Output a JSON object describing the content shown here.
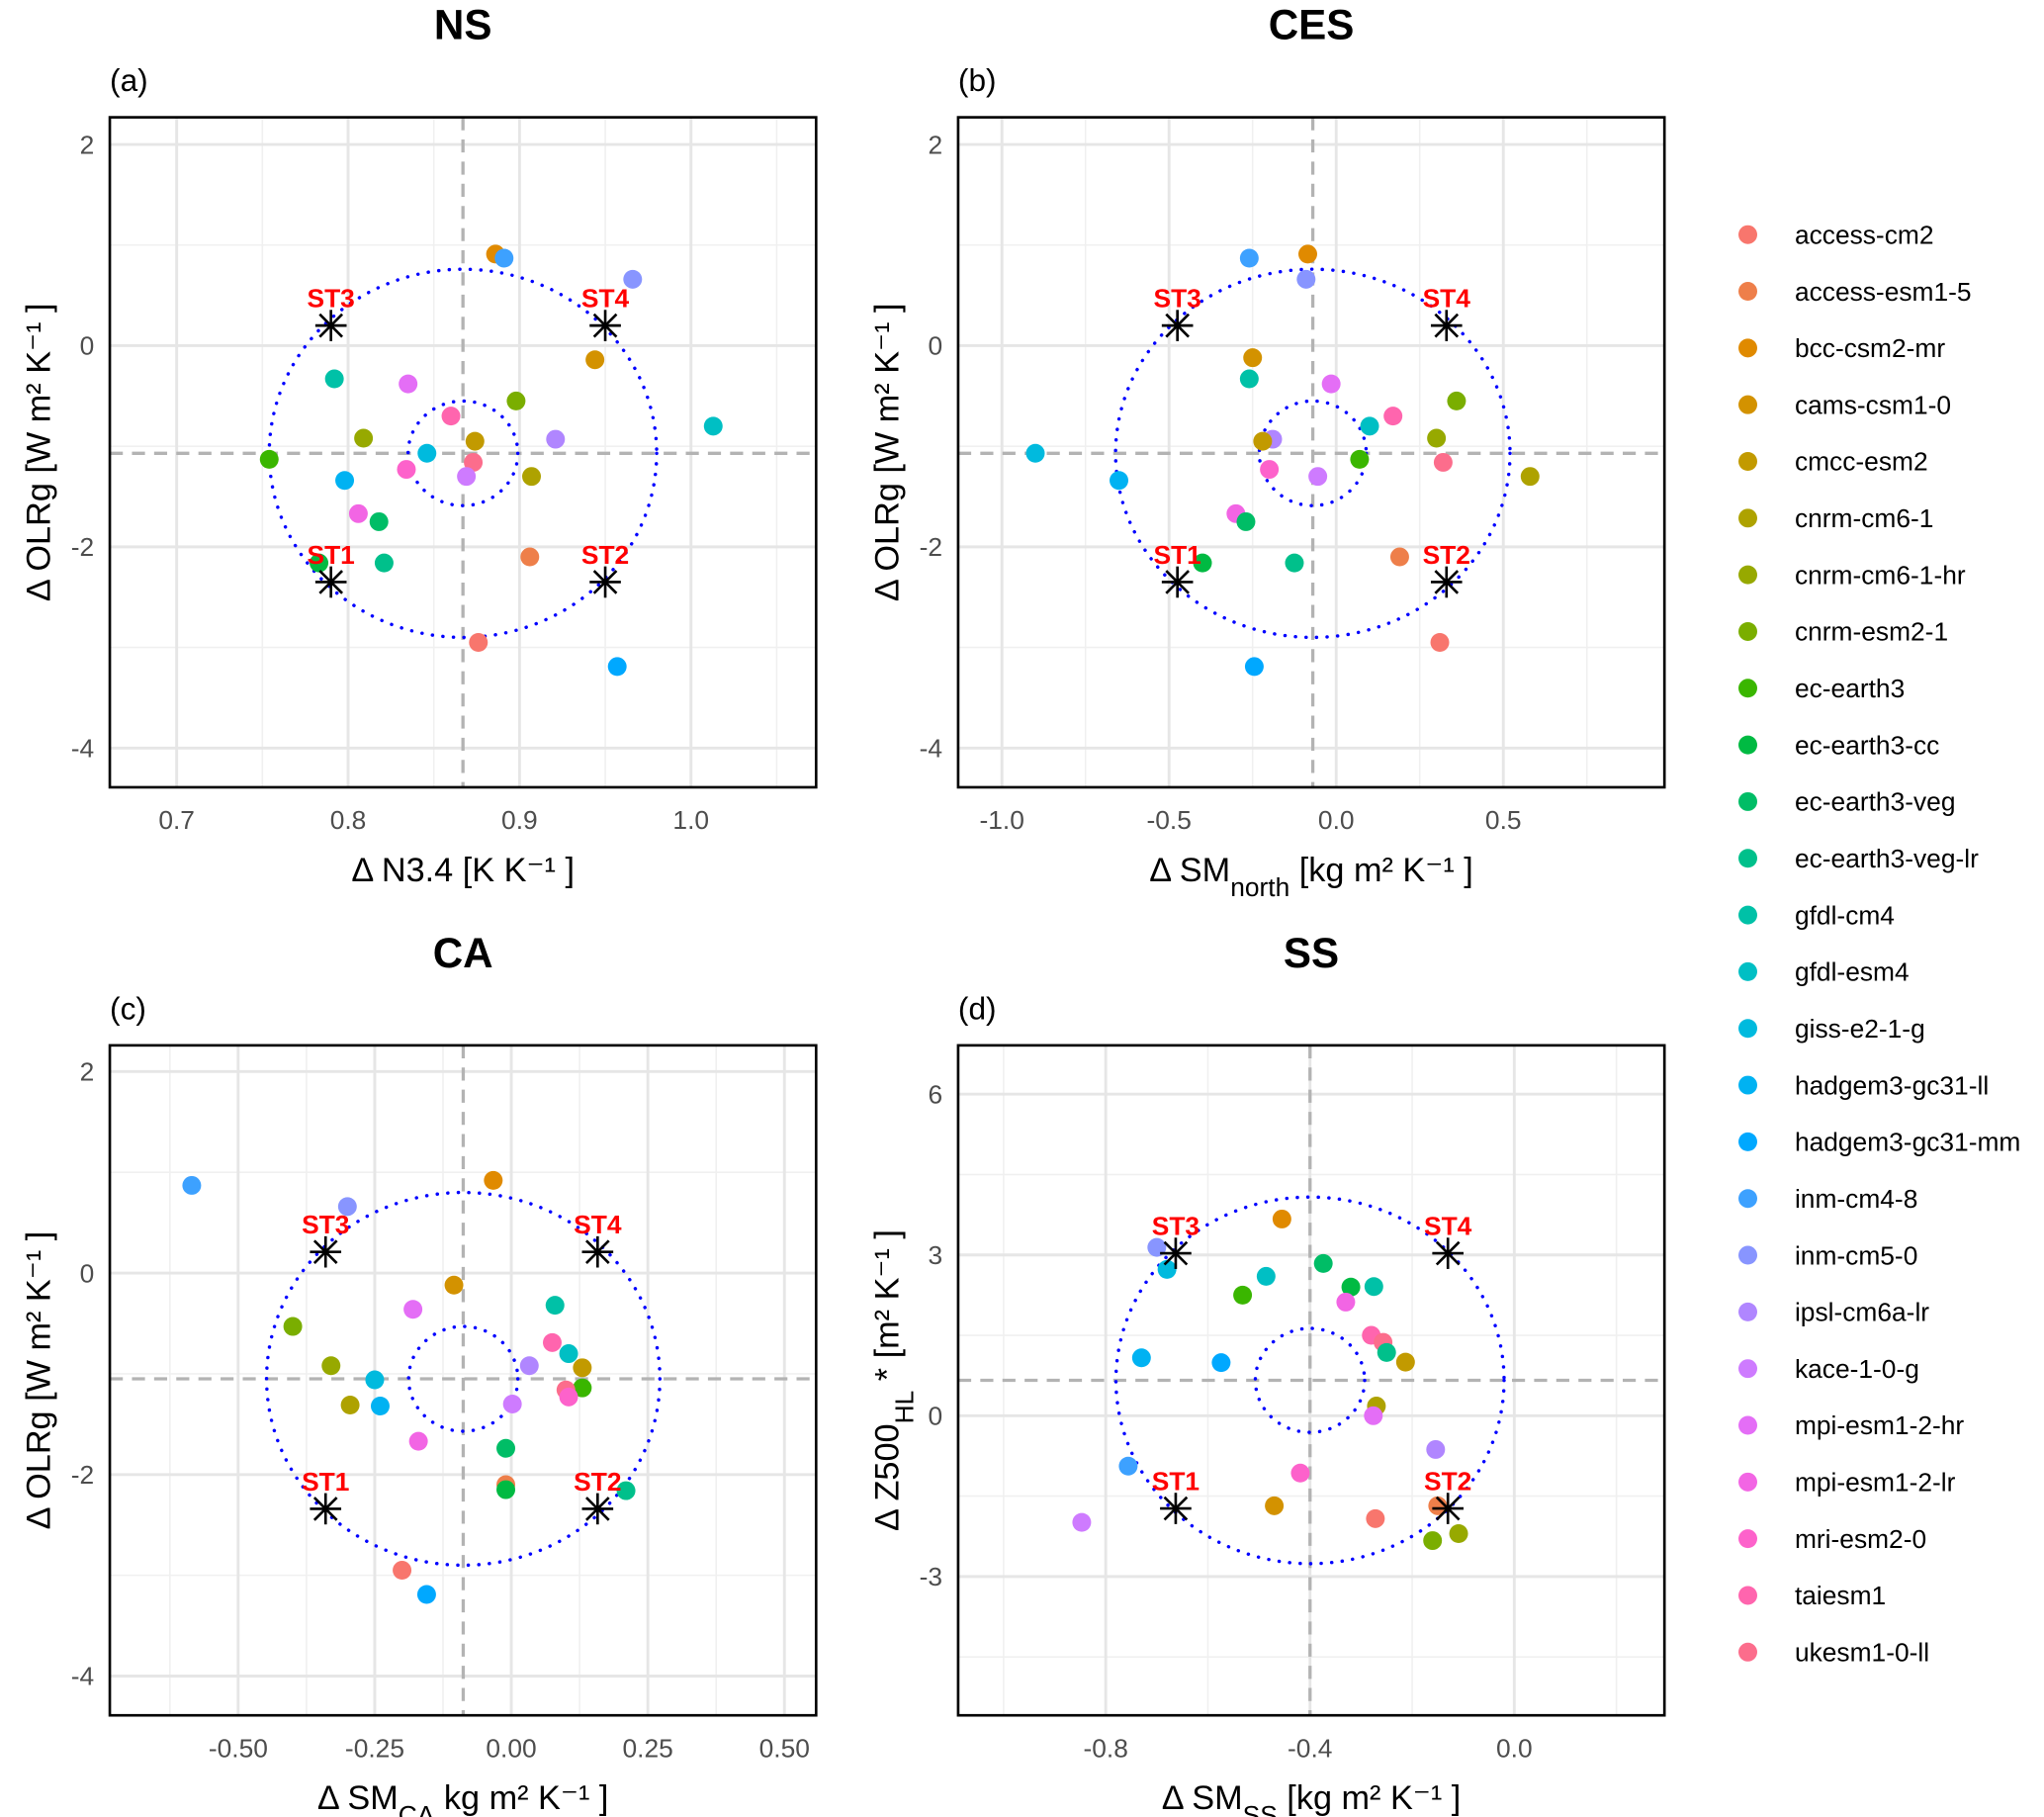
{
  "models": [
    "access-cm2",
    "access-esm1-5",
    "bcc-csm2-mr",
    "cams-csm1-0",
    "cmcc-esm2",
    "cnrm-cm6-1",
    "cnrm-cm6-1-hr",
    "cnrm-esm2-1",
    "ec-earth3",
    "ec-earth3-cc",
    "ec-earth3-veg",
    "ec-earth3-veg-lr",
    "gfdl-cm4",
    "gfdl-esm4",
    "giss-e2-1-g",
    "hadgem3-gc31-ll",
    "hadgem3-gc31-mm",
    "inm-cm4-8",
    "inm-cm5-0",
    "ipsl-cm6a-lr",
    "kace-1-0-g",
    "mpi-esm1-2-hr",
    "mpi-esm1-2-lr",
    "mri-esm2-0",
    "taiesm1",
    "ukesm1-0-ll"
  ],
  "colors": [
    "#F8766D",
    "#EE7F4A",
    "#E08A00",
    "#D39200",
    "#C29A00",
    "#AEA200",
    "#97A900",
    "#7AAE00",
    "#3AB600",
    "#00BA42",
    "#00BD66",
    "#00C08B",
    "#00C1A7",
    "#00BFC4",
    "#00BADE",
    "#00B2F2",
    "#00A8FF",
    "#3DA1FF",
    "#8895FF",
    "#B086FF",
    "#CE7BFF",
    "#E46EF6",
    "#F265E4",
    "#FD62CB",
    "#FF65AE",
    "#FC6D8C"
  ],
  "legend": {
    "position": "right"
  },
  "chart_data": [
    {
      "type": "scatter",
      "tag": "(a)",
      "title": "NS",
      "xlabel": {
        "text": "Δ N3.4 [K K⁻¹ ]"
      },
      "ylabel": {
        "text": "Δ OLRg [W m² K⁻¹ ]"
      },
      "xlim": [
        0.661,
        1.073
      ],
      "ylim": [
        -4.39,
        2.27
      ],
      "xticks": [
        "0.7",
        "0.8",
        "0.9",
        "1.0"
      ],
      "xtick_values": [
        0.7,
        0.8,
        0.9,
        1.0
      ],
      "xminor": [
        0.65,
        0.75,
        0.85,
        0.95,
        1.05
      ],
      "yticks": [
        "2",
        "0",
        "-2",
        "-4"
      ],
      "ytick_values": [
        2,
        0,
        -2,
        -4
      ],
      "yminor": [
        1,
        -1,
        -3
      ],
      "center": [
        0.867,
        -1.07
      ],
      "circles": [
        {
          "rx": 0.113,
          "ry": 1.83
        },
        {
          "rx": 0.032,
          "ry": 0.52
        }
      ],
      "stations": [
        {
          "label": "ST1",
          "x": 0.79,
          "y": -2.35
        },
        {
          "label": "ST2",
          "x": 0.95,
          "y": -2.35
        },
        {
          "label": "ST3",
          "x": 0.79,
          "y": 0.2
        },
        {
          "label": "ST4",
          "x": 0.95,
          "y": 0.2
        }
      ],
      "points": [
        {
          "m": "bcc-csm2-mr",
          "x": 0.886,
          "y": 0.91
        },
        {
          "m": "inm-cm4-8",
          "x": 0.891,
          "y": 0.87
        },
        {
          "m": "inm-cm5-0",
          "x": 0.966,
          "y": 0.66
        },
        {
          "m": "cams-csm1-0",
          "x": 0.944,
          "y": -0.14
        },
        {
          "m": "gfdl-cm4",
          "x": 0.792,
          "y": -0.33
        },
        {
          "m": "mpi-esm1-2-hr",
          "x": 0.835,
          "y": -0.38
        },
        {
          "m": "cnrm-esm2-1",
          "x": 0.898,
          "y": -0.55
        },
        {
          "m": "taiesm1",
          "x": 0.86,
          "y": -0.7
        },
        {
          "m": "gfdl-esm4",
          "x": 1.013,
          "y": -0.8
        },
        {
          "m": "cnrm-cm6-1-hr",
          "x": 0.809,
          "y": -0.92
        },
        {
          "m": "cmcc-esm2",
          "x": 0.874,
          "y": -0.95
        },
        {
          "m": "ipsl-cm6a-lr",
          "x": 0.921,
          "y": -0.93
        },
        {
          "m": "giss-e2-1-g",
          "x": 0.846,
          "y": -1.07
        },
        {
          "m": "ec-earth3",
          "x": 0.754,
          "y": -1.13
        },
        {
          "m": "ukesm1-0-ll",
          "x": 0.873,
          "y": -1.16
        },
        {
          "m": "mri-esm2-0",
          "x": 0.834,
          "y": -1.23
        },
        {
          "m": "kace-1-0-g",
          "x": 0.869,
          "y": -1.3
        },
        {
          "m": "hadgem3-gc31-ll",
          "x": 0.798,
          "y": -1.34
        },
        {
          "m": "cnrm-cm6-1",
          "x": 0.907,
          "y": -1.3
        },
        {
          "m": "mpi-esm1-2-lr",
          "x": 0.806,
          "y": -1.67
        },
        {
          "m": "ec-earth3-veg",
          "x": 0.818,
          "y": -1.75
        },
        {
          "m": "ec-earth3-cc",
          "x": 0.783,
          "y": -2.16
        },
        {
          "m": "ec-earth3-veg-lr",
          "x": 0.821,
          "y": -2.16
        },
        {
          "m": "access-esm1-5",
          "x": 0.906,
          "y": -2.1
        },
        {
          "m": "access-cm2",
          "x": 0.876,
          "y": -2.95
        },
        {
          "m": "hadgem3-gc31-mm",
          "x": 0.957,
          "y": -3.19
        }
      ]
    },
    {
      "type": "scatter",
      "tag": "(b)",
      "title": "CES",
      "xlabel": {
        "text": "Δ SM",
        "sub": "north",
        "after": " [kg m² K⁻¹ ]"
      },
      "ylabel": {
        "text": "Δ OLRg [W m² K⁻¹ ]"
      },
      "xlim": [
        -1.131,
        0.982
      ],
      "ylim": [
        -4.39,
        2.27
      ],
      "xticks": [
        "-1.0",
        "-0.5",
        "0.0",
        "0.5"
      ],
      "xtick_values": [
        -1,
        -0.5,
        0,
        0.5
      ],
      "xminor": [
        -0.75,
        -0.25,
        0.25,
        0.75
      ],
      "yticks": [
        "2",
        "0",
        "-2",
        "-4"
      ],
      "ytick_values": [
        2,
        0,
        -2,
        -4
      ],
      "yminor": [
        1,
        -1,
        -3
      ],
      "center": [
        -0.07,
        -1.07
      ],
      "circles": [
        {
          "rx": 0.59,
          "ry": 1.83
        },
        {
          "rx": 0.16,
          "ry": 0.52
        }
      ],
      "stations": [
        {
          "label": "ST1",
          "x": -0.475,
          "y": -2.35
        },
        {
          "label": "ST2",
          "x": 0.33,
          "y": -2.35
        },
        {
          "label": "ST3",
          "x": -0.475,
          "y": 0.2
        },
        {
          "label": "ST4",
          "x": 0.33,
          "y": 0.2
        }
      ],
      "points": [
        {
          "m": "inm-cm4-8",
          "x": -0.26,
          "y": 0.87
        },
        {
          "m": "bcc-csm2-mr",
          "x": -0.085,
          "y": 0.91
        },
        {
          "m": "inm-cm5-0",
          "x": -0.09,
          "y": 0.66
        },
        {
          "m": "cams-csm1-0",
          "x": -0.25,
          "y": -0.12
        },
        {
          "m": "gfdl-cm4",
          "x": -0.26,
          "y": -0.33
        },
        {
          "m": "mpi-esm1-2-hr",
          "x": -0.015,
          "y": -0.38
        },
        {
          "m": "cnrm-esm2-1",
          "x": 0.36,
          "y": -0.55
        },
        {
          "m": "taiesm1",
          "x": 0.17,
          "y": -0.7
        },
        {
          "m": "gfdl-esm4",
          "x": 0.1,
          "y": -0.8
        },
        {
          "m": "cnrm-cm6-1-hr",
          "x": 0.3,
          "y": -0.92
        },
        {
          "m": "ipsl-cm6a-lr",
          "x": -0.19,
          "y": -0.93
        },
        {
          "m": "cmcc-esm2",
          "x": -0.22,
          "y": -0.95
        },
        {
          "m": "giss-e2-1-g",
          "x": -0.9,
          "y": -1.07
        },
        {
          "m": "ec-earth3",
          "x": 0.07,
          "y": -1.13
        },
        {
          "m": "ukesm1-0-ll",
          "x": 0.32,
          "y": -1.16
        },
        {
          "m": "mri-esm2-0",
          "x": -0.2,
          "y": -1.23
        },
        {
          "m": "kace-1-0-g",
          "x": -0.055,
          "y": -1.3
        },
        {
          "m": "hadgem3-gc31-ll",
          "x": -0.65,
          "y": -1.34
        },
        {
          "m": "cnrm-cm6-1",
          "x": 0.58,
          "y": -1.3
        },
        {
          "m": "mpi-esm1-2-lr",
          "x": -0.3,
          "y": -1.67
        },
        {
          "m": "ec-earth3-veg",
          "x": -0.27,
          "y": -1.75
        },
        {
          "m": "ec-earth3-cc",
          "x": -0.4,
          "y": -2.16
        },
        {
          "m": "ec-earth3-veg-lr",
          "x": -0.125,
          "y": -2.16
        },
        {
          "m": "access-esm1-5",
          "x": 0.19,
          "y": -2.1
        },
        {
          "m": "access-cm2",
          "x": 0.31,
          "y": -2.95
        },
        {
          "m": "hadgem3-gc31-mm",
          "x": -0.245,
          "y": -3.19
        }
      ]
    },
    {
      "type": "scatter",
      "tag": "(c)",
      "title": "CA",
      "xlabel": {
        "text": "Δ SM",
        "sub": "CA",
        "after": " kg m² K⁻¹ ]"
      },
      "ylabel": {
        "text": "Δ OLRg [W m² K⁻¹ ]"
      },
      "xlim": [
        -0.735,
        0.558
      ],
      "ylim": [
        -4.39,
        2.26
      ],
      "xticks": [
        "-0.50",
        "-0.25",
        "0.00",
        "0.25",
        "0.50"
      ],
      "xtick_values": [
        -0.5,
        -0.25,
        0,
        0.25,
        0.5
      ],
      "xminor": [
        -0.625,
        -0.375,
        -0.125,
        0.125,
        0.375
      ],
      "yticks": [
        "2",
        "0",
        "-2",
        "-4"
      ],
      "ytick_values": [
        2,
        0,
        -2,
        -4
      ],
      "yminor": [
        1,
        -1,
        -3
      ],
      "center": [
        -0.088,
        -1.05
      ],
      "circles": [
        {
          "rx": 0.36,
          "ry": 1.85
        },
        {
          "rx": 0.1,
          "ry": 0.52
        }
      ],
      "stations": [
        {
          "label": "ST1",
          "x": -0.34,
          "y": -2.34
        },
        {
          "label": "ST2",
          "x": 0.158,
          "y": -2.34
        },
        {
          "label": "ST3",
          "x": -0.34,
          "y": 0.21
        },
        {
          "label": "ST4",
          "x": 0.158,
          "y": 0.21
        }
      ],
      "points": [
        {
          "m": "inm-cm4-8",
          "x": -0.585,
          "y": 0.87
        },
        {
          "m": "bcc-csm2-mr",
          "x": -0.033,
          "y": 0.92
        },
        {
          "m": "inm-cm5-0",
          "x": -0.3,
          "y": 0.66
        },
        {
          "m": "cams-csm1-0",
          "x": -0.105,
          "y": -0.12
        },
        {
          "m": "mpi-esm1-2-hr",
          "x": -0.18,
          "y": -0.36
        },
        {
          "m": "gfdl-cm4",
          "x": 0.08,
          "y": -0.32
        },
        {
          "m": "cnrm-esm2-1",
          "x": -0.4,
          "y": -0.53
        },
        {
          "m": "taiesm1",
          "x": 0.075,
          "y": -0.69
        },
        {
          "m": "gfdl-esm4",
          "x": 0.105,
          "y": -0.8
        },
        {
          "m": "ipsl-cm6a-lr",
          "x": 0.033,
          "y": -0.92
        },
        {
          "m": "cnrm-cm6-1-hr",
          "x": -0.33,
          "y": -0.92
        },
        {
          "m": "cmcc-esm2",
          "x": 0.13,
          "y": -0.94
        },
        {
          "m": "giss-e2-1-g",
          "x": -0.25,
          "y": -1.06
        },
        {
          "m": "ec-earth3",
          "x": 0.13,
          "y": -1.14
        },
        {
          "m": "ukesm1-0-ll",
          "x": 0.1,
          "y": -1.16
        },
        {
          "m": "mri-esm2-0",
          "x": 0.105,
          "y": -1.23
        },
        {
          "m": "kace-1-0-g",
          "x": 0.002,
          "y": -1.3
        },
        {
          "m": "cnrm-cm6-1",
          "x": -0.295,
          "y": -1.31
        },
        {
          "m": "hadgem3-gc31-ll",
          "x": -0.24,
          "y": -1.32
        },
        {
          "m": "mpi-esm1-2-lr",
          "x": -0.17,
          "y": -1.67
        },
        {
          "m": "ec-earth3-veg",
          "x": -0.01,
          "y": -1.74
        },
        {
          "m": "access-esm1-5",
          "x": -0.01,
          "y": -2.1
        },
        {
          "m": "ec-earth3-cc",
          "x": -0.01,
          "y": -2.15
        },
        {
          "m": "ec-earth3-veg-lr",
          "x": 0.21,
          "y": -2.16
        },
        {
          "m": "access-cm2",
          "x": -0.2,
          "y": -2.95
        },
        {
          "m": "hadgem3-gc31-mm",
          "x": -0.155,
          "y": -3.19
        }
      ]
    },
    {
      "type": "scatter",
      "tag": "(d)",
      "title": "SS",
      "xlabel": {
        "text": "Δ SM",
        "sub": "SS",
        "after": " [kg m² K⁻¹ ]"
      },
      "ylabel": {
        "text": "Δ Z500",
        "sub": "HL",
        "after": " * [m² K⁻¹ ]"
      },
      "xlim": [
        -1.089,
        0.294
      ],
      "ylim": [
        -5.59,
        6.91
      ],
      "xticks": [
        "-0.8",
        "-0.4",
        "0.0"
      ],
      "xtick_values": [
        -0.8,
        -0.4,
        0
      ],
      "xminor": [
        -1.0,
        -0.6,
        -0.2,
        0.2
      ],
      "yticks": [
        "6",
        "3",
        "0",
        "-3"
      ],
      "ytick_values": [
        6,
        3,
        0,
        -3
      ],
      "yminor": [
        4.5,
        1.5,
        -1.5,
        -4.5
      ],
      "center": [
        -0.4,
        0.66
      ],
      "circles": [
        {
          "rx": 0.38,
          "ry": 3.42
        },
        {
          "rx": 0.107,
          "ry": 0.97
        }
      ],
      "stations": [
        {
          "label": "ST1",
          "x": -0.663,
          "y": -1.73
        },
        {
          "label": "ST2",
          "x": -0.13,
          "y": -1.73
        },
        {
          "label": "ST3",
          "x": -0.663,
          "y": 3.03
        },
        {
          "label": "ST4",
          "x": -0.13,
          "y": 3.03
        }
      ],
      "points": [
        {
          "m": "bcc-csm2-mr",
          "x": -0.455,
          "y": 3.67
        },
        {
          "m": "inm-cm5-0",
          "x": -0.7,
          "y": 3.14
        },
        {
          "m": "giss-e2-1-g",
          "x": -0.68,
          "y": 2.73
        },
        {
          "m": "gfdl-esm4",
          "x": -0.486,
          "y": 2.6
        },
        {
          "m": "ec-earth3-veg",
          "x": -0.374,
          "y": 2.84
        },
        {
          "m": "ec-earth3",
          "x": -0.532,
          "y": 2.25
        },
        {
          "m": "ec-earth3-cc",
          "x": -0.32,
          "y": 2.4
        },
        {
          "m": "gfdl-cm4",
          "x": -0.275,
          "y": 2.41
        },
        {
          "m": "mpi-esm1-2-lr",
          "x": -0.33,
          "y": 2.12
        },
        {
          "m": "taiesm1",
          "x": -0.28,
          "y": 1.5
        },
        {
          "m": "ukesm1-0-ll",
          "x": -0.257,
          "y": 1.37
        },
        {
          "m": "ec-earth3-veg-lr",
          "x": -0.25,
          "y": 1.18
        },
        {
          "m": "cmcc-esm2",
          "x": -0.213,
          "y": 1.0
        },
        {
          "m": "hadgem3-gc31-ll",
          "x": -0.73,
          "y": 1.08
        },
        {
          "m": "hadgem3-gc31-mm",
          "x": -0.574,
          "y": 0.99
        },
        {
          "m": "cnrm-cm6-1",
          "x": -0.27,
          "y": 0.18
        },
        {
          "m": "mpi-esm1-2-hr",
          "x": -0.276,
          "y": 0.0
        },
        {
          "m": "ipsl-cm6a-lr",
          "x": -0.154,
          "y": -0.63
        },
        {
          "m": "inm-cm4-8",
          "x": -0.756,
          "y": -0.94
        },
        {
          "m": "mri-esm2-0",
          "x": -0.419,
          "y": -1.07
        },
        {
          "m": "kace-1-0-g",
          "x": -0.847,
          "y": -1.99
        },
        {
          "m": "cams-csm1-0",
          "x": -0.47,
          "y": -1.68
        },
        {
          "m": "access-cm2",
          "x": -0.272,
          "y": -1.92
        },
        {
          "m": "access-esm1-5",
          "x": -0.15,
          "y": -1.68
        },
        {
          "m": "cnrm-esm2-1",
          "x": -0.16,
          "y": -2.33
        },
        {
          "m": "cnrm-cm6-1-hr",
          "x": -0.109,
          "y": -2.2
        }
      ]
    }
  ]
}
